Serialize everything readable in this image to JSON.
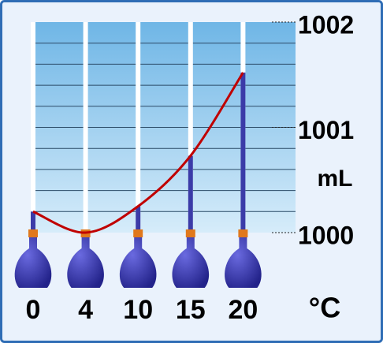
{
  "chart_data": {
    "type": "line",
    "categories": [
      "0",
      "4",
      "10",
      "15",
      "20"
    ],
    "values": [
      1000.2,
      1000.0,
      1000.25,
      1000.73,
      1001.52
    ],
    "color": "#c00000",
    "tube_color": "#3b3ba8",
    "ylim": [
      1000,
      1002
    ],
    "yticks": [
      1000,
      1001,
      1002
    ],
    "y_label": "mL",
    "x_label": "°C"
  }
}
